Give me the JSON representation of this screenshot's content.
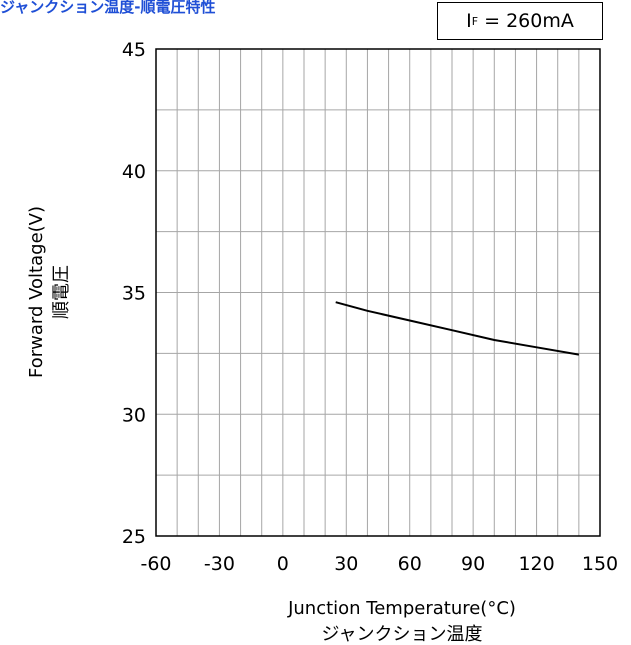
{
  "title": "ジャンクション温度-順電圧特性",
  "condition": {
    "symbol": "I",
    "subscript": "F",
    "value": "= 260mA"
  },
  "chart_data": {
    "type": "line",
    "title": "ジャンクション温度-順電圧特性",
    "xlabel": "Junction Temperature(°C)",
    "xlabel_jp": "ジャンクション温度",
    "ylabel": "Forward Voltage(V)",
    "ylabel_jp": "順電圧",
    "xlim": [
      -60,
      150
    ],
    "ylim": [
      25,
      45
    ],
    "xticks": [
      -60,
      -30,
      0,
      30,
      60,
      90,
      120,
      150
    ],
    "yticks": [
      25,
      30,
      35,
      40,
      45
    ],
    "x_minor_step": 10,
    "y_minor_step": 2.5,
    "grid": true,
    "series": [
      {
        "x": [
          25,
          40,
          60,
          80,
          100,
          120,
          140
        ],
        "y": [
          34.6,
          34.25,
          33.85,
          33.45,
          33.05,
          32.75,
          32.45
        ]
      }
    ],
    "colors": {
      "title": "#1f4fd6",
      "line": "#000000",
      "grid": "#a6a6a6"
    }
  }
}
